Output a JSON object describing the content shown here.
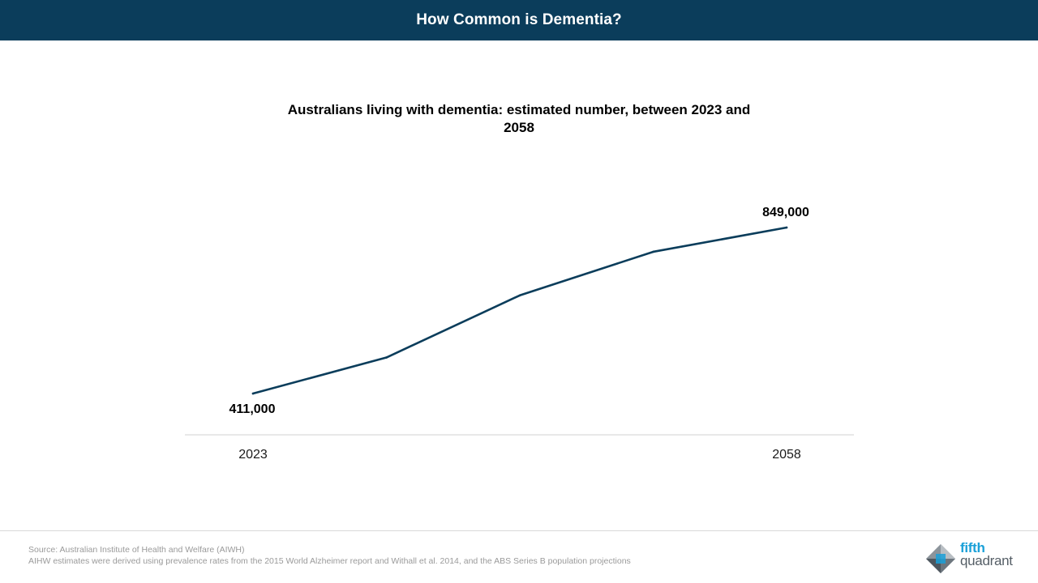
{
  "header": {
    "title": "How Common is Dementia?"
  },
  "chart_data": {
    "type": "line",
    "title": "Australians living with dementia: estimated number, between 2023 and 2058",
    "categories": [
      "2023",
      "",
      "",
      "",
      "2058"
    ],
    "values": [
      411000,
      506000,
      670000,
      785000,
      849000
    ],
    "x_tick_labels": [
      "2023",
      "2058"
    ],
    "data_labels": [
      {
        "index": 0,
        "text": "411,000"
      },
      {
        "index": 4,
        "text": "849,000"
      }
    ],
    "ylim": [
      300000,
      900000
    ],
    "xlabel": "",
    "ylabel": "",
    "grid": false,
    "line_color": "#0b3d5b"
  },
  "footer": {
    "source_line1": "Source: Australian Institute of Health and Welfare (AIWH)",
    "source_line2": "AIHW estimates were derived using prevalence rates from the 2015 World Alzheimer report and Withall et al. 2014, and the ABS Series B population projections"
  },
  "logo": {
    "word1": "fifth",
    "word2": "quadrant"
  },
  "colors": {
    "header_bg": "#0b3d5b",
    "logo_blue": "#1aa0d8",
    "logo_grey": "#555e66"
  }
}
